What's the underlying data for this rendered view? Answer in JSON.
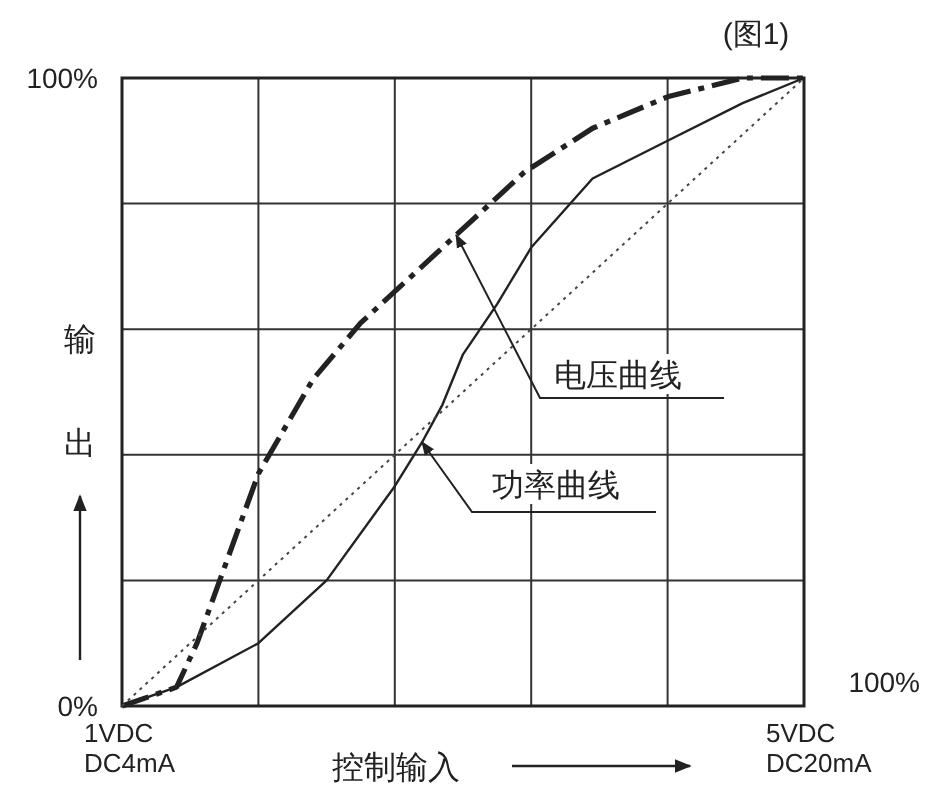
{
  "chart_data": {
    "type": "line",
    "title": "(图1)",
    "xlabel": "控制输入",
    "ylabel": "输出",
    "xlim": [
      1,
      5
    ],
    "ylim": [
      0,
      100
    ],
    "xticks": [
      {
        "value": 1,
        "label": "1VDC"
      },
      {
        "value": 1.8,
        "label": null
      },
      {
        "value": 2.6,
        "label": null
      },
      {
        "value": 3.4,
        "label": null
      },
      {
        "value": 4.2,
        "label": null
      },
      {
        "value": 5,
        "label": "5VDC"
      }
    ],
    "yticks": [
      {
        "value": 0,
        "label": "0%"
      },
      {
        "value": 20,
        "label": null
      },
      {
        "value": 40,
        "label": null
      },
      {
        "value": 60,
        "label": null
      },
      {
        "value": 80,
        "label": null
      },
      {
        "value": 100,
        "label": "100%"
      }
    ],
    "grid": true,
    "marker": "none",
    "series": [
      {
        "color": "#222222",
        "line_style": "dashed",
        "x": [
          1,
          1.32,
          1.44,
          1.56,
          1.8,
          2.12,
          2.4,
          2.96,
          3.36,
          3.76,
          4.2,
          4.64,
          5
        ],
        "values": [
          0,
          3,
          10,
          19,
          37,
          52,
          61,
          75,
          85,
          92,
          97,
          100,
          100
        ]
      },
      {
        "color": "#222222",
        "line_style": "solid",
        "x": [
          1,
          1.32,
          1.8,
          2.2,
          2.6,
          2.76,
          2.88,
          3,
          3.2,
          3.4,
          3.76,
          4.2,
          4.64,
          5
        ],
        "values": [
          0,
          3,
          10,
          20,
          35,
          42,
          48,
          56,
          64,
          73,
          84,
          90,
          96,
          100
        ]
      },
      {
        "color": "#444444",
        "line_style": "dotted",
        "x": [
          1,
          5
        ],
        "values": [
          0,
          100
        ]
      }
    ],
    "annotations": [
      {
        "text": "电压曲线",
        "x": 2.96,
        "y": 75
      },
      {
        "text": "功率曲线",
        "x": 2.76,
        "y": 42
      },
      "100%",
      "DC4mA",
      "DC20mA"
    ]
  }
}
